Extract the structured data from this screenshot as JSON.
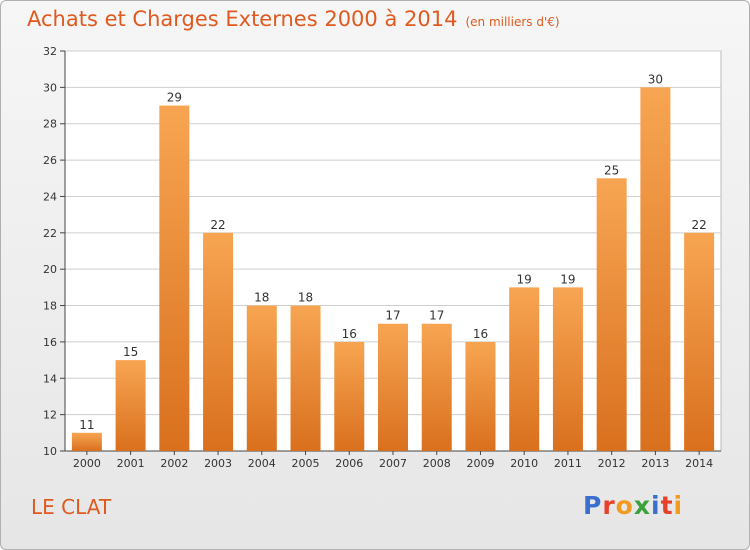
{
  "title": "Achats et Charges Externes 2000 à 2014",
  "subtitle": "(en milliers d'€)",
  "commune": "LE CLAT",
  "logo": {
    "letters": [
      "P",
      "r",
      "o",
      "x",
      "i",
      "t",
      "i"
    ],
    "colors": [
      "#3a6fd0",
      "#e8412b",
      "#f39a1e",
      "#3aa23a",
      "#3a6fd0",
      "#e8412b",
      "#f39a1e"
    ]
  },
  "colors": {
    "title": "#e05a1f",
    "bar_top": "#f7a552",
    "bar_bottom": "#d9701e",
    "axis": "#444444",
    "grid": "#cfcfcf"
  },
  "chart_data": {
    "type": "bar",
    "categories": [
      "2000",
      "2001",
      "2002",
      "2003",
      "2004",
      "2005",
      "2006",
      "2007",
      "2008",
      "2009",
      "2010",
      "2011",
      "2012",
      "2013",
      "2014"
    ],
    "values": [
      11,
      15,
      29,
      22,
      18,
      18,
      16,
      17,
      17,
      16,
      19,
      19,
      25,
      30,
      22
    ],
    "data_labels": [
      "11",
      "15",
      "29",
      "22",
      "18",
      "18",
      "16",
      "17",
      "17",
      "16",
      "19",
      "19",
      "25",
      "30",
      "22"
    ],
    "ylim": [
      10,
      32
    ],
    "yticks": [
      "10",
      "12",
      "14",
      "16",
      "18",
      "20",
      "22",
      "24",
      "26",
      "28",
      "30",
      "32"
    ],
    "grid": true,
    "legend": "none"
  }
}
